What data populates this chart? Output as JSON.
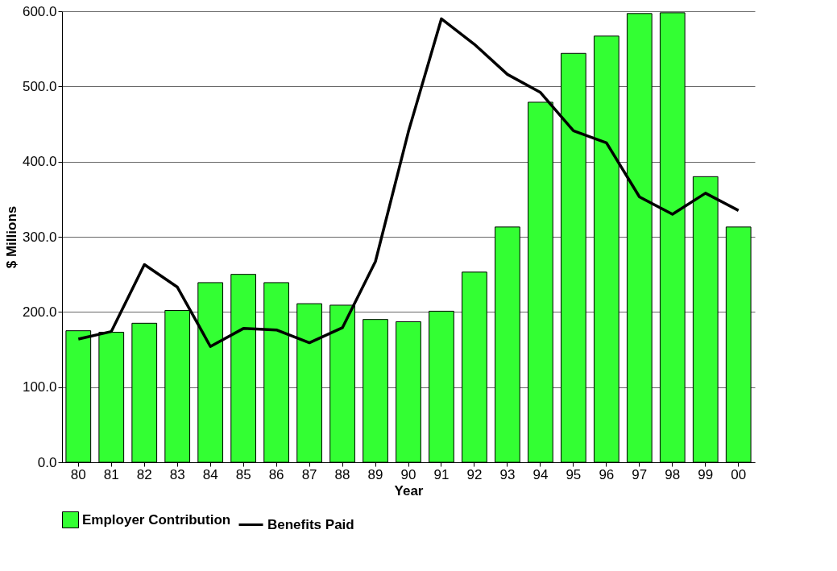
{
  "chart_data": {
    "type": "bar",
    "xlabel": "Year",
    "ylabel": "$ Millions",
    "categories": [
      "80",
      "81",
      "82",
      "83",
      "84",
      "85",
      "86",
      "87",
      "88",
      "89",
      "90",
      "91",
      "92",
      "93",
      "94",
      "95",
      "96",
      "97",
      "98",
      "99",
      "00"
    ],
    "series": [
      {
        "name": "Employer Contribution",
        "color": "#33ff33",
        "values": [
          175,
          173,
          185,
          202,
          239,
          250,
          239,
          211,
          209,
          190,
          187,
          201,
          253,
          313,
          479,
          544,
          567,
          597,
          598,
          380,
          313
        ]
      },
      {
        "name": "Benefits Paid",
        "type": "line",
        "color": "#000000",
        "values": [
          164,
          174,
          263,
          233,
          154,
          178,
          176,
          159,
          179,
          267,
          440,
          590,
          556,
          516,
          492,
          441,
          425,
          353,
          330,
          358,
          335
        ]
      }
    ],
    "ylim": [
      0,
      600
    ],
    "yticks": [
      {
        "value": 0,
        "label": "0.0"
      },
      {
        "value": 100,
        "label": "100.0"
      },
      {
        "value": 200,
        "label": "200.0"
      },
      {
        "value": 300,
        "label": "300.0"
      },
      {
        "value": 400,
        "label": "400.0"
      },
      {
        "value": 500,
        "label": "500.0"
      },
      {
        "value": 600,
        "label": "600.0"
      }
    ],
    "grid": "y",
    "legend": "bottom",
    "marker": "none",
    "line_style": "solid"
  }
}
